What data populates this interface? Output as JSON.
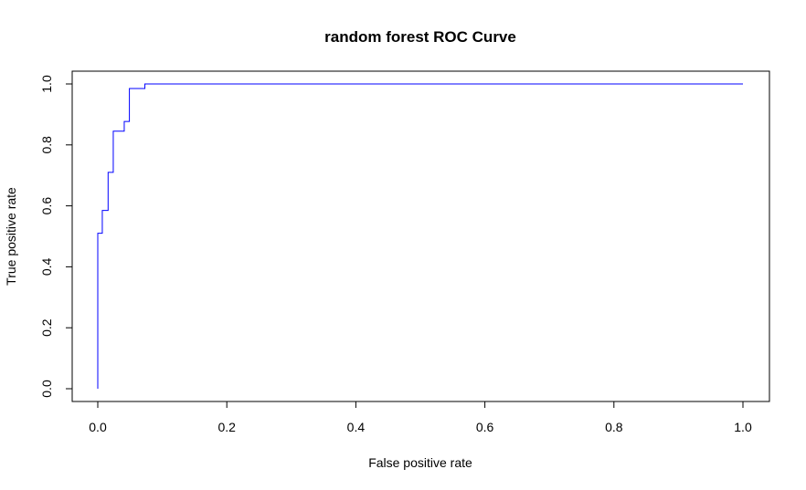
{
  "chart_data": {
    "type": "line",
    "title": "random forest ROC Curve",
    "xlabel": "False positive rate",
    "ylabel": "True positive rate",
    "xlim": [
      0,
      1
    ],
    "ylim": [
      0,
      1
    ],
    "x_ticks": [
      "0.0",
      "0.2",
      "0.4",
      "0.6",
      "0.8",
      "1.0"
    ],
    "y_ticks": [
      "0.0",
      "0.2",
      "0.4",
      "0.6",
      "0.8",
      "1.0"
    ],
    "grid": false,
    "legend": "none",
    "series": [
      {
        "color": "#0000ff",
        "x": [
          0.0,
          0.0,
          0.007,
          0.007,
          0.016,
          0.016,
          0.024,
          0.024,
          0.041,
          0.041,
          0.049,
          0.049,
          0.073,
          0.073,
          1.0
        ],
        "y": [
          0.0,
          0.51,
          0.51,
          0.585,
          0.585,
          0.71,
          0.71,
          0.845,
          0.845,
          0.877,
          0.877,
          0.985,
          0.985,
          1.0,
          1.0
        ]
      }
    ]
  }
}
